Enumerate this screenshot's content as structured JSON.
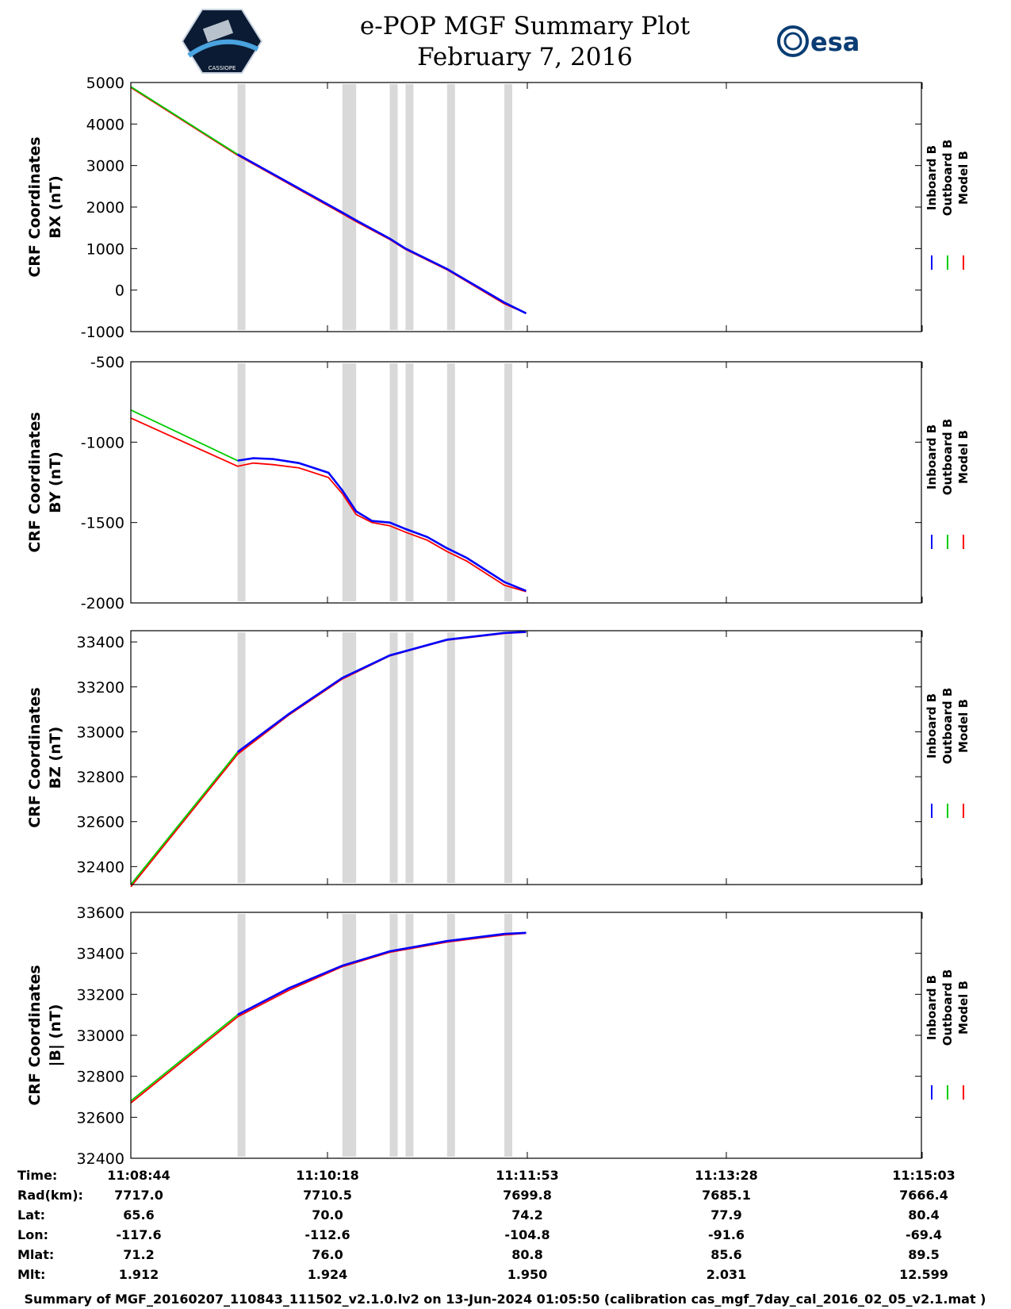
{
  "header": {
    "title_line1": "e-POP MGF Summary Plot",
    "title_line2": "February 7, 2016",
    "left_logo_text": "CASSIOPE",
    "right_logo_text": "esa"
  },
  "legend": [
    {
      "label": "Inboard B",
      "color": "#0000ff"
    },
    {
      "label": "Outboard B",
      "color": "#00cc00"
    },
    {
      "label": "Model B",
      "color": "#ff0000"
    }
  ],
  "colors": {
    "gap_fill": "#d9d9d9",
    "inboard": "#0000ff",
    "outboard": "#00cc00",
    "model": "#ff0000",
    "axis": "#000000"
  },
  "chart_data": [
    {
      "type": "line",
      "ylabel_line1": "CRF Coordinates",
      "ylabel_line2": "BX (nT)",
      "ylim": [
        -1000,
        5000
      ],
      "yticks": [
        5000,
        4000,
        3000,
        2000,
        1000,
        0,
        -1000
      ],
      "x_range_seconds": [
        0,
        400
      ],
      "gap_intervals": [
        [
          54,
          58
        ],
        [
          107,
          114
        ],
        [
          131,
          135
        ],
        [
          139,
          143
        ],
        [
          160,
          164
        ],
        [
          189,
          193
        ]
      ],
      "series": [
        {
          "name": "Outboard B",
          "x": [
            0,
            54
          ],
          "values": [
            4900,
            3270
          ]
        },
        {
          "name": "Inboard B",
          "x": [
            54,
            107,
            114,
            131,
            139,
            160,
            189,
            200
          ],
          "values": [
            3270,
            1870,
            1680,
            1240,
            1000,
            510,
            -300,
            -560
          ]
        },
        {
          "name": "Model B",
          "x": [
            0,
            54,
            107,
            114,
            131,
            139,
            160,
            189,
            200
          ],
          "values": [
            4880,
            3250,
            1840,
            1650,
            1220,
            980,
            490,
            -330,
            -560
          ]
        }
      ]
    },
    {
      "type": "line",
      "ylabel_line1": "CRF Coordinates",
      "ylabel_line2": "BY (nT)",
      "ylim": [
        -2000,
        -500
      ],
      "yticks": [
        -500,
        -1000,
        -1500,
        -2000
      ],
      "x_range_seconds": [
        0,
        400
      ],
      "gap_intervals": [
        [
          54,
          58
        ],
        [
          107,
          114
        ],
        [
          131,
          135
        ],
        [
          139,
          143
        ],
        [
          160,
          164
        ],
        [
          189,
          193
        ]
      ],
      "series": [
        {
          "name": "Outboard B",
          "x": [
            0,
            54
          ],
          "values": [
            -800,
            -1115
          ]
        },
        {
          "name": "Inboard B",
          "x": [
            54,
            62,
            72,
            85,
            100,
            107,
            114,
            122,
            131,
            139,
            150,
            160,
            170,
            189,
            200
          ],
          "values": [
            -1115,
            -1100,
            -1105,
            -1130,
            -1190,
            -1300,
            -1430,
            -1490,
            -1500,
            -1540,
            -1590,
            -1660,
            -1720,
            -1870,
            -1925
          ]
        },
        {
          "name": "Model B",
          "x": [
            0,
            54,
            62,
            72,
            85,
            100,
            107,
            114,
            122,
            131,
            139,
            150,
            160,
            170,
            189,
            200
          ],
          "values": [
            -850,
            -1150,
            -1130,
            -1140,
            -1160,
            -1220,
            -1320,
            -1450,
            -1500,
            -1520,
            -1560,
            -1610,
            -1680,
            -1740,
            -1890,
            -1930
          ]
        }
      ]
    },
    {
      "type": "line",
      "ylabel_line1": "CRF Coordinates",
      "ylabel_line2": "BZ (nT)",
      "ylim": [
        32320,
        33450
      ],
      "yticks": [
        33400,
        33200,
        33000,
        32800,
        32600,
        32400
      ],
      "x_range_seconds": [
        0,
        400
      ],
      "gap_intervals": [
        [
          54,
          58
        ],
        [
          107,
          114
        ],
        [
          131,
          135
        ],
        [
          139,
          143
        ],
        [
          160,
          164
        ],
        [
          189,
          193
        ]
      ],
      "series": [
        {
          "name": "Outboard B",
          "x": [
            0,
            54
          ],
          "values": [
            32320,
            32910
          ]
        },
        {
          "name": "Inboard B",
          "x": [
            54,
            80,
            107,
            131,
            160,
            189,
            200
          ],
          "values": [
            32910,
            33080,
            33240,
            33340,
            33410,
            33440,
            33445
          ]
        },
        {
          "name": "Model B",
          "x": [
            0,
            54,
            80,
            107,
            131,
            160,
            189,
            200
          ],
          "values": [
            32310,
            32900,
            33075,
            33235,
            33338,
            33408,
            33438,
            33443
          ]
        }
      ]
    },
    {
      "type": "line",
      "ylabel_line1": "CRF Coordinates",
      "ylabel_line2": "|B| (nT)",
      "ylim": [
        32400,
        33600
      ],
      "yticks": [
        33600,
        33400,
        33200,
        33000,
        32800,
        32600,
        32400
      ],
      "x_range_seconds": [
        0,
        400
      ],
      "gap_intervals": [
        [
          54,
          58
        ],
        [
          107,
          114
        ],
        [
          131,
          135
        ],
        [
          139,
          143
        ],
        [
          160,
          164
        ],
        [
          189,
          193
        ]
      ],
      "series": [
        {
          "name": "Outboard B",
          "x": [
            0,
            54
          ],
          "values": [
            32680,
            33100
          ]
        },
        {
          "name": "Inboard B",
          "x": [
            54,
            80,
            107,
            131,
            160,
            189,
            200
          ],
          "values": [
            33100,
            33230,
            33340,
            33410,
            33460,
            33495,
            33500
          ]
        },
        {
          "name": "Model B",
          "x": [
            0,
            54,
            80,
            107,
            131,
            160,
            189,
            200
          ],
          "values": [
            32670,
            33090,
            33220,
            33335,
            33405,
            33455,
            33490,
            33498
          ]
        }
      ]
    }
  ],
  "info_table": {
    "row_labels": [
      "Time:",
      "Rad(km):",
      "Lat:",
      "Lon:",
      "Mlat:",
      "Mlt:"
    ],
    "columns": [
      [
        "11:08:44",
        "7717.0",
        "65.6",
        "-117.6",
        "71.2",
        "1.912"
      ],
      [
        "11:10:18",
        "7710.5",
        "70.0",
        "-112.6",
        "76.0",
        "1.924"
      ],
      [
        "11:11:53",
        "7699.8",
        "74.2",
        "-104.8",
        "80.8",
        "1.950"
      ],
      [
        "11:13:28",
        "7685.1",
        "77.9",
        "-91.6",
        "85.6",
        "2.031"
      ],
      [
        "11:15:03",
        "7666.4",
        "80.4",
        "-69.4",
        "89.5",
        "12.599"
      ]
    ]
  },
  "footer": "Summary of MGF_20160207_110843_111502_v2.1.0.lv2 on 13-Jun-2024 01:05:50 (calibration cas_mgf_7day_cal_2016_02_05_v2.1.mat )"
}
